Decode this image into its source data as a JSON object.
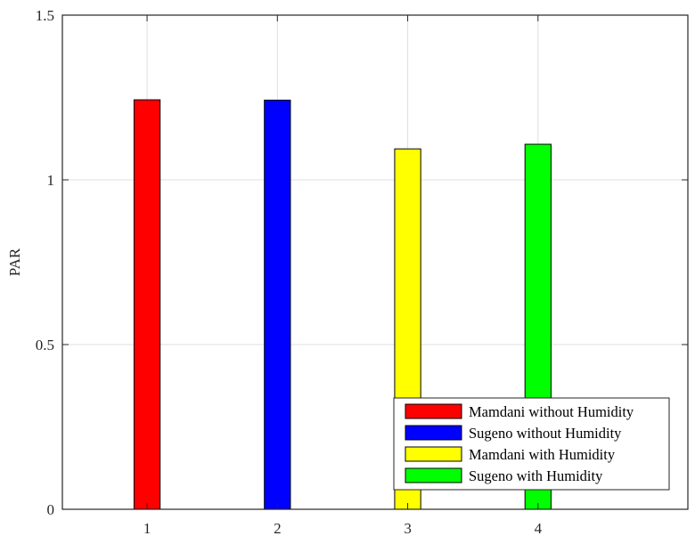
{
  "chart_data": {
    "type": "bar",
    "title": "",
    "xlabel": "",
    "ylabel": "PAR",
    "categories": [
      "1",
      "2",
      "3",
      "4"
    ],
    "x_ticks": [
      "1",
      "2",
      "3",
      "4"
    ],
    "y_ticks": [
      "0",
      "0.5",
      "1",
      "1.5"
    ],
    "xlim": [
      0.35,
      5.15
    ],
    "ylim": [
      0,
      1.5
    ],
    "grid": true,
    "legend_position": "bottom-right",
    "series": [
      {
        "name": "Mamdani without Humidity",
        "x": 1,
        "value": 1.243,
        "color": "#ff0000"
      },
      {
        "name": "Sugeno without Humidity",
        "x": 2,
        "value": 1.242,
        "color": "#0000ff"
      },
      {
        "name": "Mamdani with Humidity",
        "x": 3,
        "value": 1.094,
        "color": "#ffff00"
      },
      {
        "name": "Sugeno with Humidity",
        "x": 4,
        "value": 1.108,
        "color": "#00ff00"
      }
    ]
  }
}
